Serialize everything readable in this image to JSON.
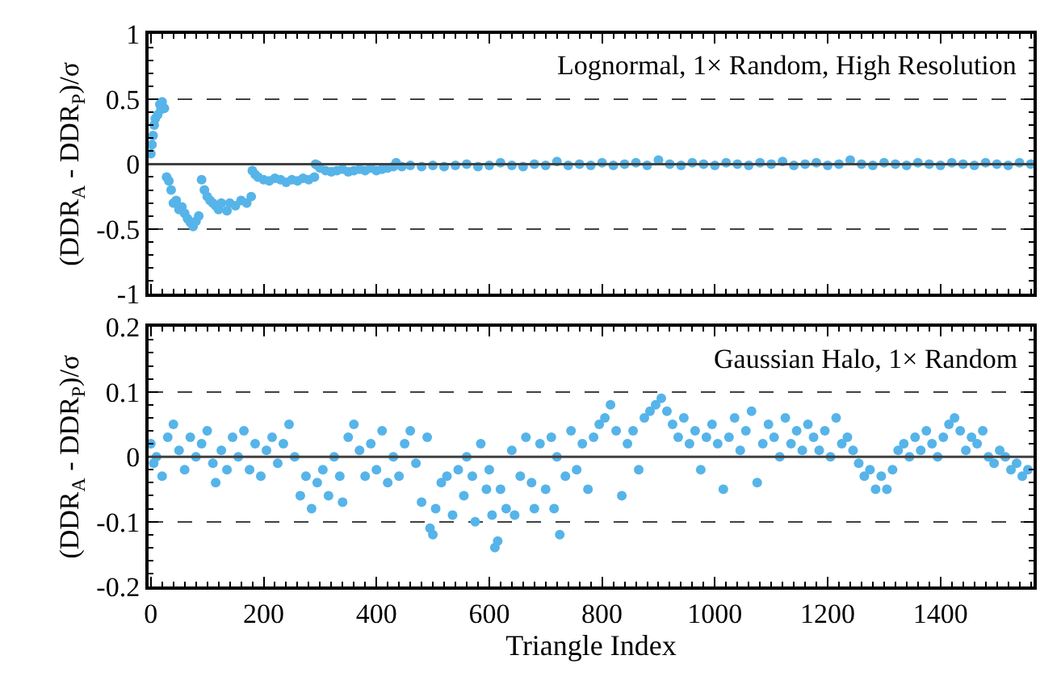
{
  "chart_data": [
    {
      "type": "scatter",
      "ylabel": "(DDR$_{A}$ - DDR$_{P}$)/σ",
      "annotations": [
        "Lognormal, 1× Random, High Resolution"
      ],
      "marker": "circle",
      "grid": "y",
      "tick_labels": "y",
      "xlim": [
        -4,
        1565
      ],
      "xticks": [
        0,
        200,
        400,
        600,
        800,
        1000,
        1200,
        1400
      ],
      "ylim": [
        -1,
        1
      ],
      "yticks": [
        -1,
        -0.5,
        0,
        0.5,
        1
      ],
      "ref_lines": [
        {
          "axis": "y",
          "value": 0,
          "color": "#404040"
        }
      ],
      "series": [
        {
          "color": "#56b4e9",
          "x": [
            0,
            2,
            4,
            6,
            8,
            12,
            16,
            18,
            20,
            24,
            28,
            32,
            36,
            40,
            45,
            50,
            55,
            60,
            65,
            70,
            75,
            80,
            85,
            90,
            95,
            100,
            105,
            110,
            115,
            120,
            125,
            135,
            140,
            150,
            160,
            170,
            178,
            180,
            185,
            190,
            200,
            210,
            220,
            230,
            240,
            250,
            260,
            270,
            280,
            290,
            292,
            296,
            300,
            310,
            320,
            330,
            340,
            350,
            360,
            370,
            380,
            390,
            400,
            410,
            420,
            430,
            435,
            445,
            460,
            480,
            500,
            520,
            540,
            560,
            580,
            600,
            620,
            640,
            660,
            680,
            700,
            720,
            740,
            760,
            780,
            800,
            820,
            840,
            860,
            880,
            900,
            920,
            940,
            960,
            980,
            1000,
            1020,
            1040,
            1060,
            1080,
            1100,
            1120,
            1140,
            1160,
            1180,
            1200,
            1220,
            1240,
            1260,
            1280,
            1300,
            1320,
            1340,
            1360,
            1380,
            1400,
            1420,
            1440,
            1460,
            1480,
            1500,
            1520,
            1540,
            1560
          ],
          "values": [
            0.08,
            0.15,
            0.22,
            0.3,
            0.35,
            0.38,
            0.46,
            0.42,
            0.48,
            0.43,
            -0.1,
            -0.13,
            -0.2,
            -0.3,
            -0.28,
            -0.35,
            -0.33,
            -0.38,
            -0.42,
            -0.45,
            -0.48,
            -0.44,
            -0.4,
            -0.12,
            -0.2,
            -0.25,
            -0.28,
            -0.3,
            -0.32,
            -0.35,
            -0.3,
            -0.36,
            -0.3,
            -0.32,
            -0.28,
            -0.3,
            -0.25,
            -0.05,
            -0.08,
            -0.1,
            -0.12,
            -0.13,
            -0.11,
            -0.12,
            -0.14,
            -0.12,
            -0.13,
            -0.11,
            -0.12,
            -0.1,
            0.0,
            -0.01,
            -0.03,
            -0.05,
            -0.06,
            -0.05,
            -0.04,
            -0.06,
            -0.05,
            -0.04,
            -0.05,
            -0.03,
            -0.05,
            -0.04,
            -0.03,
            -0.02,
            0.01,
            -0.02,
            -0.01,
            -0.02,
            -0.01,
            -0.02,
            -0.01,
            0.0,
            -0.02,
            -0.01,
            0.01,
            -0.01,
            -0.02,
            0.0,
            -0.01,
            0.02,
            -0.01,
            0.0,
            -0.01,
            0.01,
            -0.01,
            0.0,
            0.01,
            -0.01,
            0.03,
            0.0,
            -0.01,
            0.01,
            0.0,
            -0.01,
            0.01,
            0.0,
            -0.01,
            0.01,
            0.0,
            0.02,
            -0.01,
            0.0,
            0.01,
            -0.01,
            0.0,
            0.03,
            0.0,
            -0.01,
            0.01,
            0.0,
            -0.01,
            0.01,
            0.0,
            -0.01,
            0.01,
            0.0,
            -0.01,
            0.01,
            0.0,
            -0.01,
            0.01,
            0.0
          ]
        }
      ]
    },
    {
      "type": "scatter",
      "xlabel": "Triangle Index",
      "ylabel": "(DDR$_{A}$ - DDR$_{P}$)/σ",
      "annotations": [
        "Gaussian Halo, 1× Random"
      ],
      "marker": "circle",
      "grid": "y",
      "xlim": [
        -4,
        1565
      ],
      "xticks": [
        0,
        200,
        400,
        600,
        800,
        1000,
        1200,
        1400
      ],
      "ylim": [
        -0.2,
        0.2
      ],
      "yticks": [
        -0.2,
        -0.1,
        0,
        0.1,
        0.2
      ],
      "ref_lines": [
        {
          "axis": "y",
          "value": 0,
          "color": "#404040"
        }
      ],
      "series": [
        {
          "color": "#56b4e9",
          "x": [
            0,
            5,
            10,
            20,
            30,
            40,
            50,
            60,
            70,
            80,
            90,
            100,
            110,
            115,
            125,
            135,
            145,
            155,
            165,
            175,
            185,
            195,
            205,
            215,
            225,
            235,
            245,
            255,
            265,
            275,
            285,
            295,
            305,
            315,
            325,
            335,
            340,
            350,
            360,
            370,
            380,
            390,
            400,
            410,
            420,
            430,
            440,
            450,
            460,
            470,
            480,
            490,
            495,
            500,
            505,
            515,
            525,
            535,
            545,
            555,
            560,
            570,
            575,
            585,
            595,
            600,
            605,
            610,
            615,
            620,
            630,
            640,
            645,
            655,
            665,
            675,
            680,
            690,
            700,
            710,
            715,
            720,
            725,
            735,
            745,
            755,
            765,
            775,
            785,
            795,
            805,
            815,
            825,
            835,
            845,
            855,
            865,
            875,
            885,
            895,
            905,
            915,
            925,
            935,
            945,
            955,
            965,
            975,
            985,
            995,
            1005,
            1015,
            1025,
            1035,
            1045,
            1055,
            1065,
            1075,
            1085,
            1095,
            1105,
            1115,
            1125,
            1135,
            1145,
            1155,
            1165,
            1175,
            1185,
            1195,
            1205,
            1215,
            1225,
            1235,
            1245,
            1255,
            1265,
            1275,
            1285,
            1295,
            1305,
            1315,
            1325,
            1335,
            1345,
            1355,
            1365,
            1375,
            1385,
            1395,
            1405,
            1415,
            1425,
            1435,
            1445,
            1455,
            1465,
            1475,
            1485,
            1495,
            1505,
            1515,
            1525,
            1535,
            1545,
            1555
          ],
          "values": [
            0.02,
            -0.01,
            0.0,
            -0.03,
            0.03,
            0.05,
            0.01,
            -0.02,
            0.03,
            0.0,
            0.02,
            0.04,
            -0.01,
            -0.04,
            0.01,
            -0.02,
            0.03,
            0.0,
            0.04,
            -0.02,
            0.02,
            -0.03,
            0.01,
            0.03,
            -0.01,
            0.02,
            0.05,
            0.0,
            -0.06,
            -0.03,
            -0.08,
            -0.04,
            -0.02,
            -0.06,
            0.0,
            -0.03,
            -0.07,
            0.03,
            0.05,
            0.01,
            -0.03,
            0.02,
            -0.02,
            0.04,
            -0.04,
            0.0,
            -0.03,
            0.02,
            0.04,
            -0.01,
            -0.07,
            0.03,
            -0.11,
            -0.12,
            -0.08,
            -0.04,
            -0.03,
            -0.09,
            -0.02,
            -0.06,
            0.0,
            -0.03,
            -0.1,
            0.02,
            -0.05,
            -0.02,
            -0.09,
            -0.14,
            -0.13,
            -0.05,
            -0.08,
            0.01,
            -0.09,
            -0.03,
            0.03,
            -0.04,
            -0.08,
            0.02,
            -0.05,
            0.03,
            -0.08,
            0.0,
            -0.12,
            -0.03,
            0.04,
            -0.02,
            0.02,
            -0.05,
            0.03,
            0.05,
            0.06,
            0.08,
            0.04,
            -0.06,
            0.02,
            0.04,
            -0.02,
            0.06,
            0.07,
            0.08,
            0.09,
            0.07,
            0.05,
            0.03,
            0.06,
            0.02,
            0.04,
            -0.02,
            0.03,
            0.05,
            0.02,
            -0.05,
            0.03,
            0.06,
            0.01,
            0.04,
            0.07,
            -0.04,
            0.02,
            0.05,
            0.03,
            0.0,
            0.06,
            0.02,
            0.04,
            0.01,
            0.05,
            0.03,
            0.01,
            0.04,
            0.0,
            0.06,
            0.02,
            0.03,
            0.01,
            -0.01,
            -0.03,
            -0.02,
            -0.05,
            -0.03,
            -0.05,
            -0.02,
            0.01,
            0.02,
            0.0,
            0.03,
            0.01,
            0.04,
            0.02,
            0.0,
            0.03,
            0.05,
            0.06,
            0.04,
            0.01,
            0.03,
            0.02,
            0.04,
            0.0,
            -0.01,
            0.01,
            0.0,
            -0.02,
            -0.01,
            -0.03,
            -0.02
          ]
        }
      ]
    }
  ]
}
